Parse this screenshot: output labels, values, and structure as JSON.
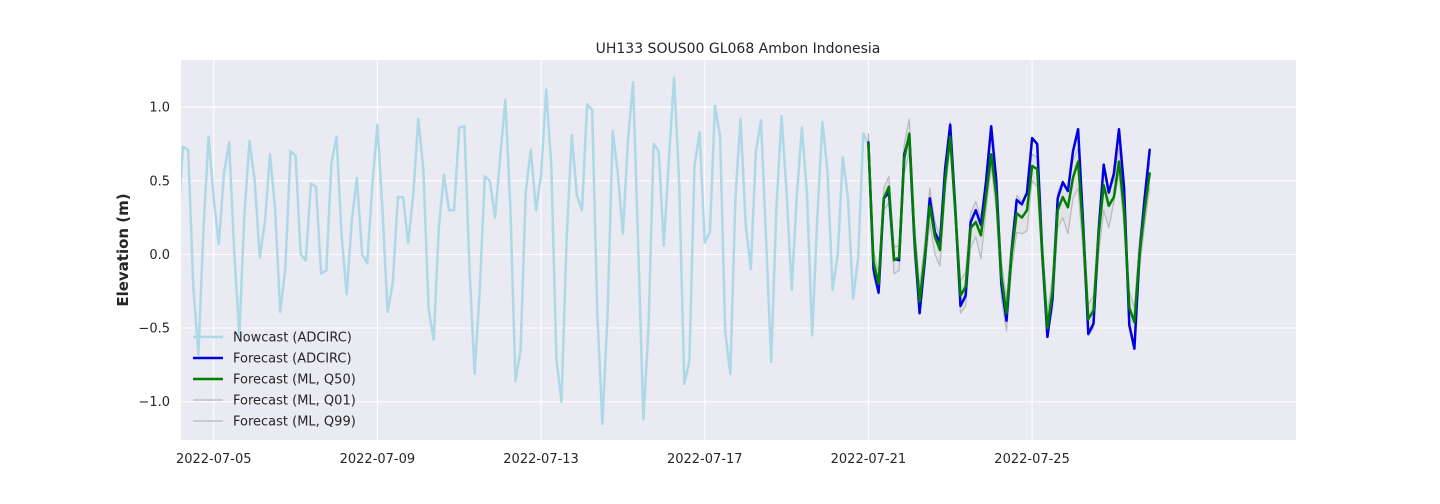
{
  "chart_data": {
    "type": "line",
    "title": "UH133 SOUS00 GL068 Ambon Indonesia",
    "xlabel": "",
    "ylabel": "Elevation (m)",
    "xlim": [
      -0.8,
      26.45
    ],
    "ylim": [
      -1.26,
      1.32
    ],
    "x_unit": "days since 2022-07-05",
    "xticks": [
      {
        "value": 0,
        "label": "2022-07-05"
      },
      {
        "value": 4,
        "label": "2022-07-09"
      },
      {
        "value": 8,
        "label": "2022-07-13"
      },
      {
        "value": 12,
        "label": "2022-07-17"
      },
      {
        "value": 16,
        "label": "2022-07-21"
      },
      {
        "value": 20,
        "label": "2022-07-25"
      }
    ],
    "yticks": [
      {
        "value": -1.0,
        "label": "−1.0"
      },
      {
        "value": -0.5,
        "label": "−0.5"
      },
      {
        "value": 0.0,
        "label": "0.0"
      },
      {
        "value": 0.5,
        "label": "0.5"
      },
      {
        "value": 1.0,
        "label": "1.0"
      }
    ],
    "grid": true,
    "legend_position": "lower-left",
    "series": [
      {
        "name": "Nowcast (ADCIRC)",
        "color": "#add8e6",
        "x": [
          -2.0,
          -1.875,
          -1.75,
          -1.625,
          -1.5,
          -1.375,
          -1.25,
          -1.125,
          -1.0,
          -0.875,
          -0.75,
          -0.625,
          -0.5,
          -0.375,
          -0.25,
          -0.125,
          0.0,
          0.125,
          0.25,
          0.375,
          0.5,
          0.625,
          0.75,
          0.875,
          1.0,
          1.125,
          1.25,
          1.375,
          1.5,
          1.625,
          1.75,
          1.875,
          2.0,
          2.125,
          2.25,
          2.375,
          2.5,
          2.625,
          2.75,
          2.875,
          3.0,
          3.125,
          3.25,
          3.375,
          3.5,
          3.625,
          3.75,
          3.875,
          4.0,
          4.125,
          4.25,
          4.375,
          4.5,
          4.625,
          4.75,
          4.875,
          5.0,
          5.125,
          5.25,
          5.375,
          5.5,
          5.625,
          5.75,
          5.875,
          6.0,
          6.125,
          6.25,
          6.375,
          6.5,
          6.625,
          6.75,
          6.875,
          7.0,
          7.125,
          7.25,
          7.375,
          7.5,
          7.625,
          7.75,
          7.875,
          8.0,
          8.125,
          8.25,
          8.375,
          8.5,
          8.625,
          8.75,
          8.875,
          9.0,
          9.125,
          9.25,
          9.375,
          9.5,
          9.625,
          9.75,
          9.875,
          10.0,
          10.125,
          10.25,
          10.375,
          10.5,
          10.625,
          10.75,
          10.875,
          11.0,
          11.125,
          11.25,
          11.375,
          11.5,
          11.625,
          11.75,
          11.875,
          12.0,
          12.125,
          12.25,
          12.375,
          12.5,
          12.625,
          12.75,
          12.875,
          13.0,
          13.125,
          13.25,
          13.375,
          13.5,
          13.625,
          13.75,
          13.875,
          14.0,
          14.125,
          14.25,
          14.375,
          14.5,
          14.625,
          14.75,
          14.875,
          15.0,
          15.125,
          15.25,
          15.375,
          15.5,
          15.625,
          15.75,
          15.875,
          16.0
        ],
        "values": [
          0.33,
          0.35,
          0.87,
          0.55,
          -0.45,
          -0.68,
          0.22,
          0.8,
          0.38,
          0.22,
          0.73,
          0.71,
          -0.22,
          -0.68,
          0.18,
          0.8,
          0.38,
          0.07,
          0.55,
          0.76,
          0.02,
          -0.55,
          0.27,
          0.77,
          0.5,
          -0.02,
          0.22,
          0.68,
          0.31,
          -0.39,
          -0.1,
          0.7,
          0.67,
          0.0,
          -0.04,
          0.48,
          0.46,
          -0.13,
          -0.11,
          0.62,
          0.8,
          0.13,
          -0.27,
          0.23,
          0.52,
          0.0,
          -0.06,
          0.47,
          0.88,
          0.3,
          -0.39,
          -0.2,
          0.39,
          0.39,
          0.08,
          0.4,
          0.92,
          0.57,
          -0.37,
          -0.58,
          0.18,
          0.54,
          0.3,
          0.3,
          0.86,
          0.87,
          -0.1,
          -0.81,
          -0.25,
          0.53,
          0.5,
          0.25,
          0.66,
          1.05,
          0.31,
          -0.86,
          -0.65,
          0.42,
          0.71,
          0.3,
          0.54,
          1.12,
          0.6,
          -0.71,
          -1.0,
          0.1,
          0.81,
          0.4,
          0.3,
          1.02,
          0.98,
          -0.4,
          -1.15,
          -0.4,
          0.84,
          0.55,
          0.14,
          0.78,
          1.17,
          0.03,
          -1.12,
          -0.5,
          0.75,
          0.7,
          0.06,
          0.65,
          1.2,
          0.48,
          -0.88,
          -0.72,
          0.6,
          0.83,
          0.08,
          0.15,
          1.01,
          0.8,
          -0.52,
          -0.81,
          0.38,
          0.92,
          0.2,
          -0.1,
          0.7,
          0.91,
          0.1,
          -0.73,
          0.3,
          0.94,
          0.42,
          -0.24,
          0.4,
          0.86,
          0.41,
          -0.55,
          0.25,
          0.9,
          0.56,
          -0.24,
          0.0,
          0.66,
          0.38,
          -0.3,
          -0.02,
          0.82,
          0.75
        ]
      },
      {
        "name": "Forecast (ADCIRC)",
        "color": "#0000e0",
        "x": [
          16.0,
          16.125,
          16.25,
          16.375,
          16.5,
          16.625,
          16.75,
          16.875,
          17.0,
          17.125,
          17.25,
          17.375,
          17.5,
          17.625,
          17.75,
          17.875,
          18.0,
          18.125,
          18.25,
          18.375,
          18.5,
          18.625,
          18.75,
          18.875,
          19.0,
          19.125,
          19.25,
          19.375,
          19.5,
          19.625,
          19.75,
          19.875,
          20.0,
          20.125,
          20.25,
          20.375,
          20.5,
          20.625,
          20.75,
          20.875,
          21.0,
          21.125,
          21.25,
          21.375,
          21.5,
          21.625,
          21.75,
          21.875,
          22.0,
          22.125,
          22.25,
          22.375,
          22.5,
          22.625,
          22.75,
          22.875
        ],
        "values": [
          0.76,
          -0.1,
          -0.26,
          0.38,
          0.42,
          -0.03,
          -0.04,
          0.68,
          0.8,
          0.1,
          -0.4,
          -0.05,
          0.38,
          0.15,
          0.08,
          0.58,
          0.88,
          0.3,
          -0.35,
          -0.28,
          0.22,
          0.3,
          0.2,
          0.5,
          0.87,
          0.5,
          -0.2,
          -0.45,
          0.02,
          0.37,
          0.34,
          0.42,
          0.79,
          0.75,
          0.0,
          -0.56,
          -0.3,
          0.38,
          0.49,
          0.43,
          0.7,
          0.85,
          0.2,
          -0.54,
          -0.47,
          0.15,
          0.61,
          0.42,
          0.55,
          0.85,
          0.45,
          -0.48,
          -0.64,
          0.0,
          0.38,
          0.71
        ]
      },
      {
        "name": "Forecast (ML, Q50)",
        "color": "#008000",
        "x": [
          16.0,
          16.125,
          16.25,
          16.375,
          16.5,
          16.625,
          16.75,
          16.875,
          17.0,
          17.125,
          17.25,
          17.375,
          17.5,
          17.625,
          17.75,
          17.875,
          18.0,
          18.125,
          18.25,
          18.375,
          18.5,
          18.625,
          18.75,
          18.875,
          19.0,
          19.125,
          19.25,
          19.375,
          19.5,
          19.625,
          19.75,
          19.875,
          20.0,
          20.125,
          20.25,
          20.375,
          20.5,
          20.625,
          20.75,
          20.875,
          21.0,
          21.125,
          21.25,
          21.375,
          21.5,
          21.625,
          21.75,
          21.875,
          22.0,
          22.125,
          22.25,
          22.375,
          22.5,
          22.625,
          22.75,
          22.875
        ],
        "values": [
          0.75,
          -0.05,
          -0.2,
          0.38,
          0.46,
          -0.04,
          -0.02,
          0.65,
          0.82,
          0.12,
          -0.32,
          -0.02,
          0.33,
          0.12,
          0.03,
          0.5,
          0.8,
          0.28,
          -0.28,
          -0.22,
          0.18,
          0.22,
          0.13,
          0.4,
          0.68,
          0.4,
          -0.15,
          -0.4,
          0.0,
          0.28,
          0.25,
          0.3,
          0.6,
          0.58,
          0.0,
          -0.5,
          -0.25,
          0.3,
          0.39,
          0.32,
          0.52,
          0.63,
          0.15,
          -0.44,
          -0.38,
          0.13,
          0.47,
          0.33,
          0.39,
          0.63,
          0.3,
          -0.36,
          -0.46,
          0.0,
          0.3,
          0.55
        ]
      },
      {
        "name": "Forecast (ML, Q01)",
        "color": "#b8b8c0",
        "x": [
          16.0,
          16.125,
          16.25,
          16.375,
          16.5,
          16.625,
          16.75,
          16.875,
          17.0,
          17.125,
          17.25,
          17.375,
          17.5,
          17.625,
          17.75,
          17.875,
          18.0,
          18.125,
          18.25,
          18.375,
          18.5,
          18.625,
          18.75,
          18.875,
          19.0,
          19.125,
          19.25,
          19.375,
          19.5,
          19.625,
          19.75,
          19.875,
          20.0,
          20.125,
          20.25,
          20.375,
          20.5,
          20.625,
          20.75,
          20.875,
          21.0,
          21.125,
          21.25,
          21.375,
          21.5,
          21.625,
          21.75,
          21.875,
          22.0,
          22.125,
          22.25,
          22.375,
          22.5,
          22.625,
          22.75,
          22.875
        ],
        "values": [
          0.8,
          -0.15,
          -0.27,
          0.3,
          0.35,
          -0.13,
          -0.11,
          0.55,
          0.7,
          -0.02,
          -0.38,
          -0.1,
          0.22,
          0.0,
          -0.08,
          0.42,
          0.75,
          0.2,
          -0.4,
          -0.35,
          0.05,
          0.12,
          -0.03,
          0.3,
          0.6,
          0.3,
          -0.3,
          -0.52,
          -0.1,
          0.15,
          0.14,
          0.16,
          0.5,
          0.46,
          -0.1,
          -0.54,
          -0.38,
          0.18,
          0.25,
          0.14,
          0.38,
          0.45,
          0.0,
          -0.55,
          -0.5,
          0.0,
          0.3,
          0.18,
          0.36,
          0.55,
          0.18,
          -0.48,
          -0.6,
          -0.1,
          0.2,
          0.45
        ]
      },
      {
        "name": "Forecast (ML, Q99)",
        "color": "#b8b8c0",
        "x": [
          16.0,
          16.125,
          16.25,
          16.375,
          16.5,
          16.625,
          16.75,
          16.875,
          17.0,
          17.125,
          17.25,
          17.375,
          17.5,
          17.625,
          17.75,
          17.875,
          18.0,
          18.125,
          18.25,
          18.375,
          18.5,
          18.625,
          18.75,
          18.875,
          19.0,
          19.125,
          19.25,
          19.375,
          19.5,
          19.625,
          19.75,
          19.875,
          20.0,
          20.125,
          20.25,
          20.375,
          20.5,
          20.625,
          20.75,
          20.875,
          21.0,
          21.125,
          21.25,
          21.375,
          21.5,
          21.625,
          21.75,
          21.875,
          22.0,
          22.125,
          22.25,
          22.375,
          22.5,
          22.625,
          22.75,
          22.875
        ],
        "values": [
          0.82,
          0.02,
          -0.12,
          0.45,
          0.53,
          0.05,
          0.06,
          0.75,
          0.92,
          0.22,
          -0.22,
          0.08,
          0.45,
          0.22,
          0.12,
          0.6,
          0.9,
          0.36,
          -0.18,
          -0.12,
          0.28,
          0.36,
          0.25,
          0.5,
          0.8,
          0.5,
          -0.05,
          -0.3,
          0.1,
          0.4,
          0.36,
          0.42,
          0.68,
          0.66,
          0.1,
          -0.4,
          -0.15,
          0.42,
          0.5,
          0.44,
          0.64,
          0.72,
          0.25,
          -0.34,
          -0.28,
          0.25,
          0.58,
          0.44,
          0.5,
          0.72,
          0.38,
          -0.25,
          -0.36,
          0.1,
          0.4,
          0.62
        ]
      }
    ]
  }
}
